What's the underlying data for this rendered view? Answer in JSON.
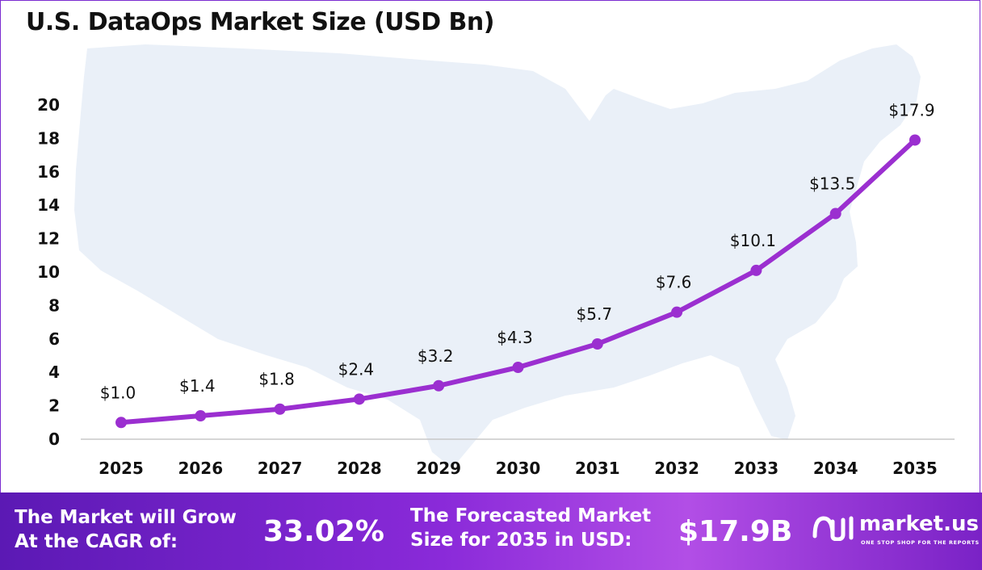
{
  "chart_data": {
    "type": "line",
    "title": "U.S. DataOps Market Size (USD Bn)",
    "categories": [
      "2025",
      "2026",
      "2027",
      "2028",
      "2029",
      "2030",
      "2031",
      "2032",
      "2033",
      "2034",
      "2035"
    ],
    "values": [
      1.0,
      1.4,
      1.8,
      2.4,
      3.2,
      4.3,
      5.7,
      7.6,
      10.1,
      13.5,
      17.9
    ],
    "data_labels": [
      "$1.0",
      "$1.4",
      "$1.8",
      "$2.4",
      "$3.2",
      "$4.3",
      "$5.7",
      "$7.6",
      "$10.1",
      "$13.5",
      "$17.9"
    ],
    "yticks": [
      0,
      2,
      4,
      6,
      8,
      10,
      12,
      14,
      16,
      18,
      20
    ],
    "ylim": [
      0,
      20
    ],
    "xlabel": "",
    "ylabel": "",
    "grid": false,
    "line_color": "#9b2fd0",
    "background_shape": "united-states-map"
  },
  "banner": {
    "cagr_text_line1": "The Market will Grow",
    "cagr_text_line2": "At the CAGR of:",
    "cagr_value": "33.02%",
    "forecast_text_line1": "The Forecasted Market",
    "forecast_text_line2": "Size for 2035 in USD:",
    "forecast_value": "$17.9B",
    "gradient_colors": [
      "#5b19b4",
      "#b24ee6"
    ]
  },
  "logo": {
    "name": "market.us",
    "tagline": "ONE STOP SHOP FOR THE REPORTS"
  }
}
